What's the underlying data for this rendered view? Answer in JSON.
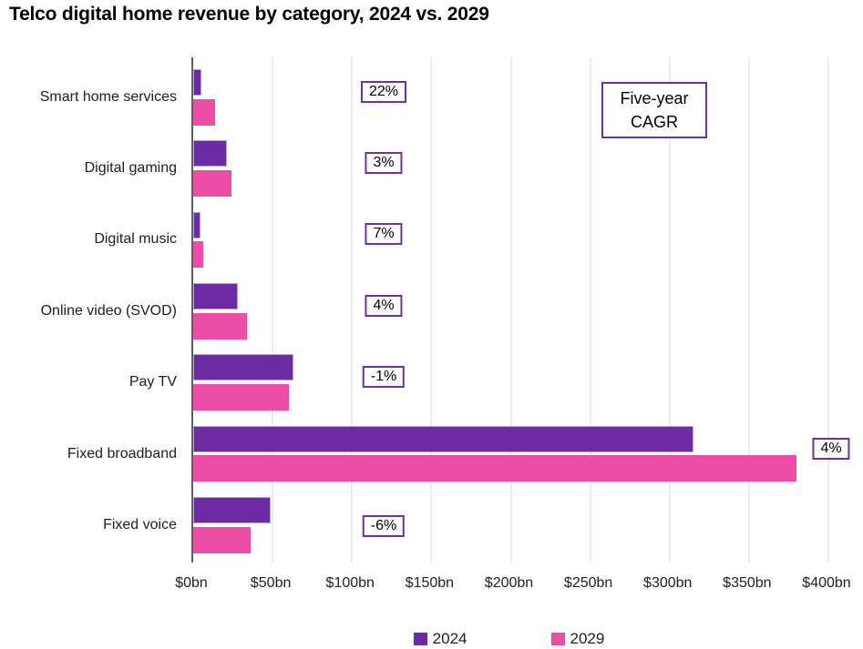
{
  "title": "Telco digital home revenue by category, 2024 vs. 2029",
  "cagr_note": {
    "line1": "Five-year",
    "line2": "CAGR"
  },
  "colors": {
    "series_2024": "#6c2ba2",
    "series_2024_border": "#b9a6d8",
    "series_2029": "#ec4da5",
    "box_border": "#7030a0",
    "axis_line": "#5d6166",
    "gridline": "#ececec"
  },
  "chart_data": {
    "type": "bar",
    "orientation": "horizontal",
    "title": "Telco digital home revenue by category, 2024 vs. 2029",
    "categories": [
      "Smart home services",
      "Digital gaming",
      "Digital music",
      "Online video (SVOD)",
      "Pay TV",
      "Fixed broadband",
      "Fixed voice"
    ],
    "series": [
      {
        "name": "2024",
        "color": "#6c2ba2",
        "values": [
          5,
          21,
          4.5,
          28,
          63,
          315,
          49
        ]
      },
      {
        "name": "2029",
        "color": "#ec4da5",
        "values": [
          14,
          24,
          6.3,
          34,
          60,
          380,
          36
        ]
      }
    ],
    "values_unit": "US$ billion",
    "cagr_labels": [
      "22%",
      "3%",
      "7%",
      "4%",
      "-1%",
      "4%",
      "-6%"
    ],
    "cagr_header": "Five-year CAGR",
    "xlim": [
      0,
      400
    ],
    "x_tick_values": [
      0,
      50,
      100,
      150,
      200,
      250,
      300,
      350,
      400
    ],
    "x_tick_labels": [
      "$0bn",
      "$50bn",
      "$100bn",
      "$150bn",
      "$200bn",
      "$250bn",
      "$300bn",
      "$350bn",
      "$400bn"
    ],
    "grid": true,
    "legend": [
      "2024",
      "2029"
    ],
    "legend_position": "bottom"
  }
}
